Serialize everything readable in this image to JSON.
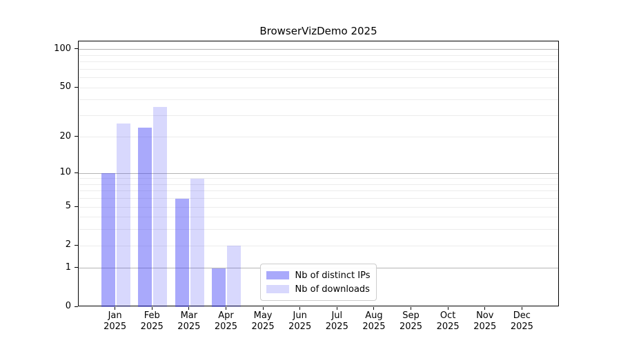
{
  "title": "BrowserVizDemo 2025",
  "colors": {
    "bar_ips": "rgba(60,60,245,0.44)",
    "bar_downloads": "rgba(60,60,245,0.20)",
    "major_gridline": "#b4b4b4",
    "minor_gridline": "#ececec",
    "axis_border": "#000000",
    "legend_border": "#cccccc",
    "text": "#000000",
    "background": "#ffffff"
  },
  "chart_data": {
    "type": "bar",
    "title": "BrowserVizDemo 2025",
    "x_categories": [
      "Jan",
      "Feb",
      "Mar",
      "Apr",
      "May",
      "Jun",
      "Jul",
      "Aug",
      "Sep",
      "Oct",
      "Nov",
      "Dec"
    ],
    "x_year_label": "2025",
    "series": [
      {
        "name": "Nb of distinct IPs",
        "color": "rgba(60,60,245,0.44)",
        "values": [
          10,
          24,
          6,
          1,
          0,
          0,
          0,
          0,
          0,
          0,
          0,
          0
        ]
      },
      {
        "name": "Nb of downloads",
        "color": "rgba(60,60,245,0.20)",
        "values": [
          26,
          35,
          9,
          2,
          0,
          0,
          0,
          0,
          0,
          0,
          0,
          0
        ]
      }
    ],
    "y_axis": {
      "scale": "symlog",
      "tick_values": [
        0,
        1,
        2,
        5,
        10,
        20,
        50,
        100
      ],
      "major_gridlines": [
        1,
        10,
        100
      ],
      "minor_gridlines": [
        2,
        3,
        4,
        5,
        6,
        7,
        8,
        9,
        20,
        30,
        40,
        50,
        60,
        70,
        80,
        90
      ],
      "ylim": [
        0,
        116
      ]
    },
    "grid": true,
    "legend_position": "lower center"
  },
  "legend": {
    "items": [
      {
        "label": "Nb of distinct IPs"
      },
      {
        "label": "Nb of downloads"
      }
    ]
  }
}
